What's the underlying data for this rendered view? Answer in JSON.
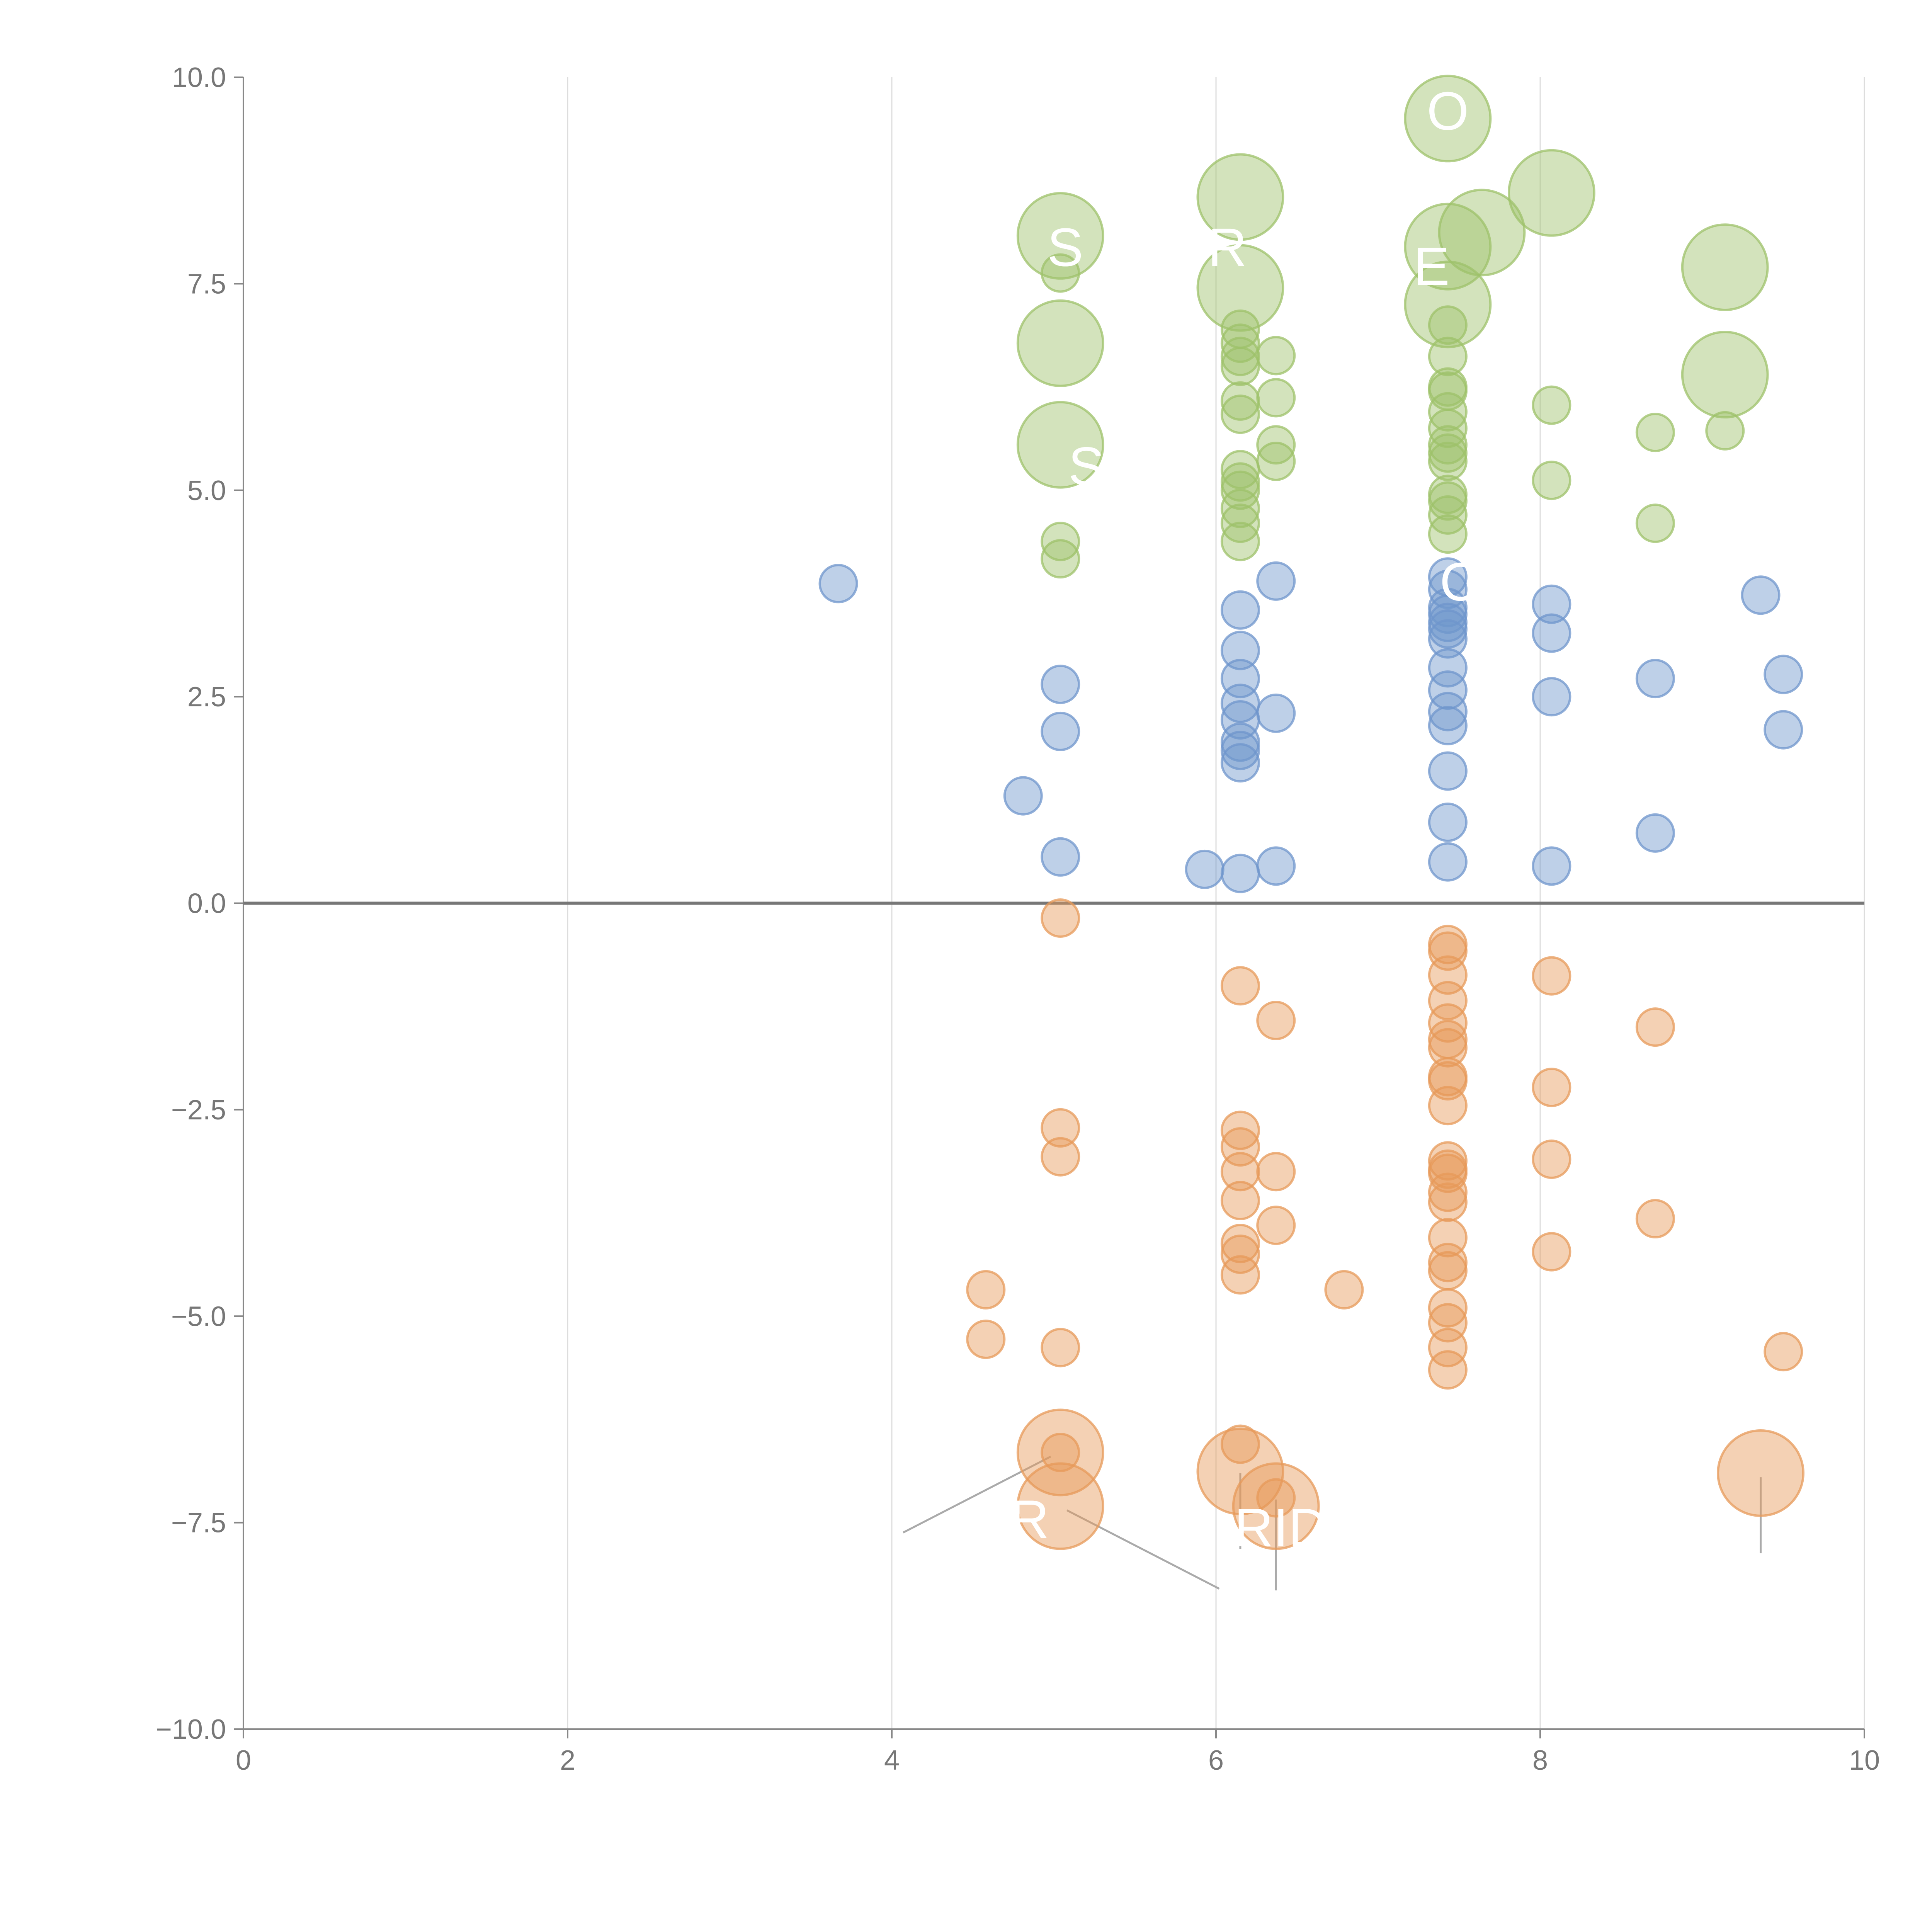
{
  "chart_data": {
    "type": "scatter",
    "title": "",
    "xlabel": "",
    "ylabel": "",
    "xlim": [
      0,
      10
    ],
    "ylim": [
      -10,
      10
    ],
    "x_ticks": [
      "0",
      "2",
      "4",
      "6",
      "8",
      "10"
    ],
    "y_ticks": [
      "−10.0",
      "−7.5",
      "−5.0",
      "−2.5",
      "0.0",
      "2.5",
      "5.0",
      "7.5",
      "10.0"
    ],
    "grid": {
      "vertical": true,
      "horizontal": false
    },
    "legend": "none",
    "colors": {
      "green": "#9dc16a",
      "blue": "#6f96cc",
      "orange": "#e79a59",
      "zero_line": "#777777",
      "grid": "#dddddd"
    },
    "series": [
      {
        "color": "#9dc16a",
        "points": [
          {
            "x": 5.04,
            "y": 8.08,
            "r": 2.3
          },
          {
            "x": 5.04,
            "y": 7.63,
            "r": 1
          },
          {
            "x": 5.04,
            "y": 6.78,
            "r": 2.3
          },
          {
            "x": 5.04,
            "y": 5.55,
            "r": 2.3
          },
          {
            "x": 5.04,
            "y": 4.38,
            "r": 1
          },
          {
            "x": 5.04,
            "y": 4.17,
            "r": 1
          },
          {
            "x": 6.15,
            "y": 8.55,
            "r": 2.3
          },
          {
            "x": 6.15,
            "y": 7.45,
            "r": 2.3
          },
          {
            "x": 6.15,
            "y": 6.95,
            "r": 1
          },
          {
            "x": 6.15,
            "y": 6.78,
            "r": 1
          },
          {
            "x": 6.15,
            "y": 6.62,
            "r": 1
          },
          {
            "x": 6.15,
            "y": 6.5,
            "r": 1
          },
          {
            "x": 6.15,
            "y": 6.08,
            "r": 1
          },
          {
            "x": 6.15,
            "y": 5.92,
            "r": 1
          },
          {
            "x": 6.15,
            "y": 5.25,
            "r": 1
          },
          {
            "x": 6.15,
            "y": 5.1,
            "r": 1
          },
          {
            "x": 6.15,
            "y": 5.0,
            "r": 1
          },
          {
            "x": 6.15,
            "y": 4.78,
            "r": 1
          },
          {
            "x": 6.15,
            "y": 4.6,
            "r": 1
          },
          {
            "x": 6.15,
            "y": 4.38,
            "r": 1
          },
          {
            "x": 6.37,
            "y": 6.63,
            "r": 1
          },
          {
            "x": 6.37,
            "y": 6.12,
            "r": 1
          },
          {
            "x": 6.37,
            "y": 5.55,
            "r": 1
          },
          {
            "x": 6.37,
            "y": 5.35,
            "r": 1
          },
          {
            "x": 7.43,
            "y": 9.5,
            "r": 2.3
          },
          {
            "x": 7.43,
            "y": 7.95,
            "r": 2.3
          },
          {
            "x": 7.43,
            "y": 7.25,
            "r": 2.3
          },
          {
            "x": 7.64,
            "y": 8.12,
            "r": 2.3
          },
          {
            "x": 7.43,
            "y": 7.0,
            "r": 1
          },
          {
            "x": 7.43,
            "y": 6.62,
            "r": 1
          },
          {
            "x": 7.43,
            "y": 6.25,
            "r": 1
          },
          {
            "x": 7.43,
            "y": 6.2,
            "r": 1
          },
          {
            "x": 7.43,
            "y": 5.95,
            "r": 1
          },
          {
            "x": 7.43,
            "y": 5.75,
            "r": 1
          },
          {
            "x": 7.43,
            "y": 5.55,
            "r": 1
          },
          {
            "x": 7.43,
            "y": 5.45,
            "r": 1
          },
          {
            "x": 7.43,
            "y": 5.35,
            "r": 1
          },
          {
            "x": 7.43,
            "y": 4.95,
            "r": 1
          },
          {
            "x": 7.43,
            "y": 4.87,
            "r": 1
          },
          {
            "x": 7.43,
            "y": 4.7,
            "r": 1
          },
          {
            "x": 7.43,
            "y": 4.47,
            "r": 1
          },
          {
            "x": 8.07,
            "y": 8.6,
            "r": 2.3
          },
          {
            "x": 8.07,
            "y": 6.03,
            "r": 1
          },
          {
            "x": 8.07,
            "y": 5.12,
            "r": 1
          },
          {
            "x": 8.71,
            "y": 5.7,
            "r": 1
          },
          {
            "x": 8.71,
            "y": 4.6,
            "r": 1
          },
          {
            "x": 9.14,
            "y": 7.7,
            "r": 2.3
          },
          {
            "x": 9.14,
            "y": 6.4,
            "r": 2.3
          },
          {
            "x": 9.14,
            "y": 5.72,
            "r": 1
          }
        ]
      },
      {
        "color": "#6f96cc",
        "points": [
          {
            "x": 3.67,
            "y": 3.87,
            "r": 1
          },
          {
            "x": 4.81,
            "y": 1.3,
            "r": 1
          },
          {
            "x": 5.04,
            "y": 2.65,
            "r": 1
          },
          {
            "x": 5.04,
            "y": 2.08,
            "r": 1
          },
          {
            "x": 5.04,
            "y": 0.56,
            "r": 1
          },
          {
            "x": 5.93,
            "y": 0.41,
            "r": 1
          },
          {
            "x": 6.15,
            "y": 3.55,
            "r": 1
          },
          {
            "x": 6.15,
            "y": 3.06,
            "r": 1
          },
          {
            "x": 6.15,
            "y": 2.72,
            "r": 1
          },
          {
            "x": 6.15,
            "y": 2.42,
            "r": 1
          },
          {
            "x": 6.15,
            "y": 2.22,
            "r": 1
          },
          {
            "x": 6.15,
            "y": 1.95,
            "r": 1
          },
          {
            "x": 6.15,
            "y": 1.85,
            "r": 1
          },
          {
            "x": 6.15,
            "y": 1.7,
            "r": 1
          },
          {
            "x": 6.15,
            "y": 0.36,
            "r": 1
          },
          {
            "x": 6.37,
            "y": 3.9,
            "r": 1
          },
          {
            "x": 6.37,
            "y": 2.3,
            "r": 1
          },
          {
            "x": 6.37,
            "y": 0.45,
            "r": 1
          },
          {
            "x": 7.43,
            "y": 3.95,
            "r": 1
          },
          {
            "x": 7.43,
            "y": 3.8,
            "r": 1
          },
          {
            "x": 7.43,
            "y": 3.58,
            "r": 1
          },
          {
            "x": 7.43,
            "y": 3.5,
            "r": 1
          },
          {
            "x": 7.43,
            "y": 3.4,
            "r": 1
          },
          {
            "x": 7.43,
            "y": 3.32,
            "r": 1
          },
          {
            "x": 7.43,
            "y": 3.2,
            "r": 1
          },
          {
            "x": 7.43,
            "y": 2.85,
            "r": 1
          },
          {
            "x": 7.43,
            "y": 2.58,
            "r": 1
          },
          {
            "x": 7.43,
            "y": 2.32,
            "r": 1
          },
          {
            "x": 7.43,
            "y": 2.15,
            "r": 1
          },
          {
            "x": 7.43,
            "y": 1.6,
            "r": 1
          },
          {
            "x": 7.43,
            "y": 0.98,
            "r": 1
          },
          {
            "x": 7.43,
            "y": 0.5,
            "r": 1
          },
          {
            "x": 8.07,
            "y": 3.62,
            "r": 1
          },
          {
            "x": 8.07,
            "y": 3.27,
            "r": 1
          },
          {
            "x": 8.07,
            "y": 2.5,
            "r": 1
          },
          {
            "x": 8.07,
            "y": 0.45,
            "r": 1
          },
          {
            "x": 8.71,
            "y": 2.72,
            "r": 1
          },
          {
            "x": 8.71,
            "y": 0.85,
            "r": 1
          },
          {
            "x": 9.36,
            "y": 3.73,
            "r": 1
          },
          {
            "x": 9.5,
            "y": 2.77,
            "r": 1
          },
          {
            "x": 9.5,
            "y": 2.1,
            "r": 1
          }
        ]
      },
      {
        "color": "#e79a59",
        "points": [
          {
            "x": 5.04,
            "y": -0.18,
            "r": 1
          },
          {
            "x": 5.04,
            "y": -2.72,
            "r": 1
          },
          {
            "x": 5.04,
            "y": -3.07,
            "r": 1
          },
          {
            "x": 5.04,
            "y": -5.38,
            "r": 1
          },
          {
            "x": 4.58,
            "y": -4.68,
            "r": 1
          },
          {
            "x": 4.58,
            "y": -5.28,
            "r": 1
          },
          {
            "x": 5.04,
            "y": -6.65,
            "r": 2.3
          },
          {
            "x": 5.04,
            "y": -7.3,
            "r": 2.3
          },
          {
            "x": 5.04,
            "y": -6.65,
            "r": 1
          },
          {
            "x": 6.15,
            "y": -1.0,
            "r": 1
          },
          {
            "x": 6.15,
            "y": -2.75,
            "r": 1
          },
          {
            "x": 6.15,
            "y": -2.95,
            "r": 1
          },
          {
            "x": 6.15,
            "y": -3.25,
            "r": 1
          },
          {
            "x": 6.15,
            "y": -3.6,
            "r": 1
          },
          {
            "x": 6.15,
            "y": -4.12,
            "r": 1
          },
          {
            "x": 6.15,
            "y": -4.25,
            "r": 1
          },
          {
            "x": 6.15,
            "y": -4.5,
            "r": 1
          },
          {
            "x": 6.15,
            "y": -6.55,
            "r": 1
          },
          {
            "x": 6.15,
            "y": -6.88,
            "r": 2.3
          },
          {
            "x": 6.37,
            "y": -7.3,
            "r": 2.3
          },
          {
            "x": 6.37,
            "y": -7.2,
            "r": 1
          },
          {
            "x": 6.37,
            "y": -1.42,
            "r": 1
          },
          {
            "x": 6.37,
            "y": -3.25,
            "r": 1
          },
          {
            "x": 6.37,
            "y": -3.9,
            "r": 1
          },
          {
            "x": 6.79,
            "y": -4.68,
            "r": 1
          },
          {
            "x": 7.43,
            "y": -0.5,
            "r": 1
          },
          {
            "x": 7.43,
            "y": -0.58,
            "r": 1
          },
          {
            "x": 7.43,
            "y": -0.87,
            "r": 1
          },
          {
            "x": 7.43,
            "y": -1.18,
            "r": 1
          },
          {
            "x": 7.43,
            "y": -1.45,
            "r": 1
          },
          {
            "x": 7.43,
            "y": -1.65,
            "r": 1
          },
          {
            "x": 7.43,
            "y": -1.75,
            "r": 1
          },
          {
            "x": 7.43,
            "y": -2.1,
            "r": 1
          },
          {
            "x": 7.43,
            "y": -2.15,
            "r": 1
          },
          {
            "x": 7.43,
            "y": -2.45,
            "r": 1
          },
          {
            "x": 7.43,
            "y": -3.12,
            "r": 1
          },
          {
            "x": 7.43,
            "y": -3.22,
            "r": 1
          },
          {
            "x": 7.43,
            "y": -3.27,
            "r": 1
          },
          {
            "x": 7.43,
            "y": -3.5,
            "r": 1
          },
          {
            "x": 7.43,
            "y": -3.62,
            "r": 1
          },
          {
            "x": 7.43,
            "y": -4.05,
            "r": 1
          },
          {
            "x": 7.43,
            "y": -4.35,
            "r": 1
          },
          {
            "x": 7.43,
            "y": -4.45,
            "r": 1
          },
          {
            "x": 7.43,
            "y": -4.9,
            "r": 1
          },
          {
            "x": 7.43,
            "y": -5.08,
            "r": 1
          },
          {
            "x": 7.43,
            "y": -5.38,
            "r": 1
          },
          {
            "x": 7.43,
            "y": -5.65,
            "r": 1
          },
          {
            "x": 8.07,
            "y": -0.88,
            "r": 1
          },
          {
            "x": 8.07,
            "y": -2.23,
            "r": 1
          },
          {
            "x": 8.07,
            "y": -3.1,
            "r": 1
          },
          {
            "x": 8.07,
            "y": -4.22,
            "r": 1
          },
          {
            "x": 8.71,
            "y": -1.5,
            "r": 1
          },
          {
            "x": 8.71,
            "y": -3.82,
            "r": 1
          },
          {
            "x": 9.36,
            "y": -6.9,
            "r": 2.3
          },
          {
            "x": 9.5,
            "y": -5.43,
            "r": 1
          }
        ]
      }
    ],
    "annotations": [
      {
        "text": "S",
        "x": 5.07,
        "y": 7.95
      },
      {
        "text": "R",
        "x": 6.07,
        "y": 7.95
      },
      {
        "text": "E",
        "x": 7.33,
        "y": 7.72
      },
      {
        "text": "O",
        "x": 7.43,
        "y": 9.6
      },
      {
        "text": "S",
        "x": 5.2,
        "y": 5.3
      },
      {
        "text": "C",
        "x": 7.5,
        "y": 3.9
      },
      {
        "text": "R",
        "x": 4.85,
        "y": -7.45
      },
      {
        "text": "RID",
        "x": 6.4,
        "y": -7.55
      }
    ],
    "leader_lines": [
      {
        "x1": 4.98,
        "y1": -6.7,
        "x2": 4.07,
        "y2": -7.62
      },
      {
        "x1": 5.08,
        "y1": -7.35,
        "x2": 6.02,
        "y2": -8.3
      },
      {
        "x1": 6.15,
        "y1": -6.9,
        "x2": 6.15,
        "y2": -7.82
      },
      {
        "x1": 6.37,
        "y1": -7.22,
        "x2": 6.37,
        "y2": -8.32
      },
      {
        "x1": 9.36,
        "y1": -6.95,
        "x2": 9.36,
        "y2": -7.87
      },
      {
        "x1": 5.04,
        "y1": 6.8,
        "x2": 5.2,
        "y2": 7.05
      },
      {
        "x1": 6.15,
        "y1": 7.0,
        "x2": 6.37,
        "y2": 6.2
      },
      {
        "x1": 8.07,
        "y1": 8.62,
        "x2": 8.3,
        "y2": 8.75
      },
      {
        "x1": 9.14,
        "y1": 7.6,
        "x2": 9.2,
        "y2": 7.2
      },
      {
        "x1": 9.14,
        "y1": 6.35,
        "x2": 9.2,
        "y2": 5.8
      },
      {
        "x1": 7.43,
        "y1": 9.5,
        "x2": 7.6,
        "y2": 9.4
      },
      {
        "x1": 6.15,
        "y1": 8.6,
        "x2": 6.18,
        "y2": 8.9
      }
    ]
  }
}
